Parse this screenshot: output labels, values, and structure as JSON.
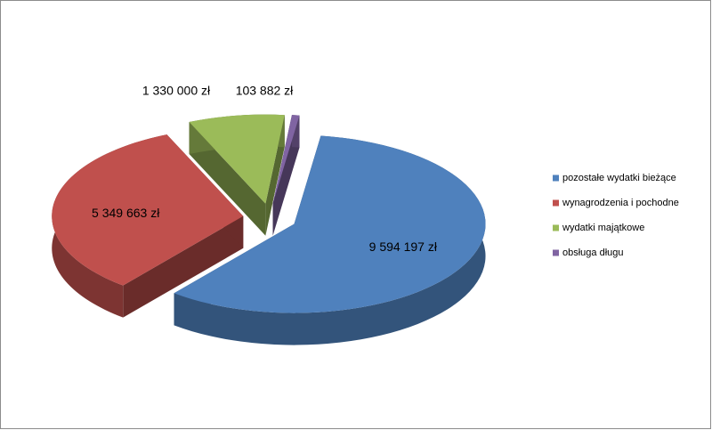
{
  "chart_data": {
    "type": "pie",
    "categories": [
      "pozostałe wydatki bieżące",
      "wynagrodzenia i pochodne",
      "wydatki majątkowe",
      "obsługa długu"
    ],
    "values": [
      9594197,
      5349663,
      1330000,
      103882
    ],
    "value_labels": [
      "9 594 197 zł",
      "5 349 663 zł",
      "1 330 000 zł",
      "103 882 zł"
    ],
    "colors": [
      "#4f81bd",
      "#c0504d",
      "#9bbb59",
      "#8064a2"
    ],
    "legend": "right"
  }
}
